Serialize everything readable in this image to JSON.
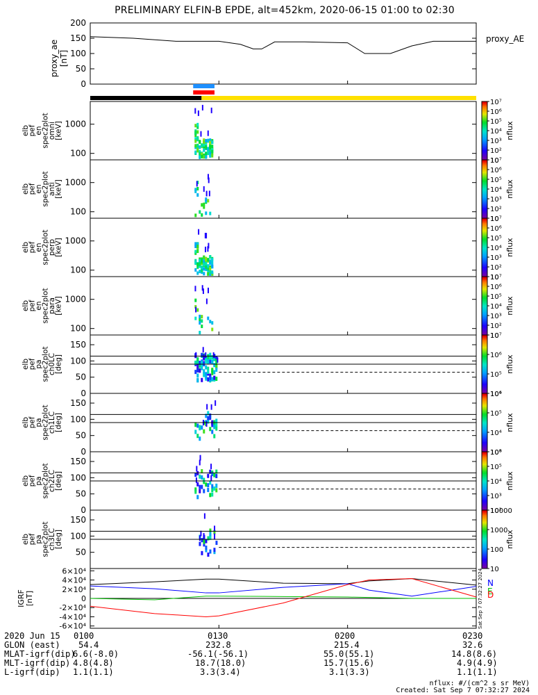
{
  "title": "PRELIMINARY ELFIN-B EPDE, alt=452km, 2020-06-15 01:00 to 02:30",
  "time_axis": {
    "start": "01:00",
    "end": "02:30",
    "ticks": [
      "0100",
      "0130",
      "0200",
      "0230"
    ]
  },
  "colors": {
    "red": "#ff0000",
    "blue": "#0000ff",
    "green": "#00c000",
    "black": "#000000",
    "yellow": "#ffe000",
    "sun_bar_blue": "#1e90ff"
  },
  "footer": {
    "date_label": "2020 Jun 15",
    "rows": [
      {
        "label": "GLON (east)",
        "values": [
          "54.4",
          "232.8",
          "215.4",
          "32.6"
        ]
      },
      {
        "label": "MLAT-igrf(dip)",
        "values": [
          "6.6(-8.0)",
          "-56.1(-56.1)",
          "55.0(55.1)",
          "14.8(8.6)"
        ]
      },
      {
        "label": "MLT-igrf(dip)",
        "values": [
          "4.8(4.8)",
          "18.7(18.0)",
          "15.7(15.6)",
          "4.9(4.9)"
        ]
      },
      {
        "label": "L-igrf(dip)",
        "values": [
          "1.1(1.1)",
          "3.3(3.4)",
          "3.1(3.3)",
          "1.1(1.1)"
        ]
      }
    ],
    "units_note": "nflux: #/(cm^2 s sr MeV)",
    "created": "Created: Sat Sep  7 07:32:27 2024",
    "stamp": "Sat Sep  7 07:32:27 2024"
  },
  "chart_data": [
    {
      "type": "line",
      "ylabel": [
        "proxy_ae",
        "[nT]"
      ],
      "legend": [
        "proxy_AE"
      ],
      "ylim": [
        0,
        200
      ],
      "yticks": [
        0,
        50,
        100,
        150,
        200
      ],
      "x": [
        "01:00",
        "01:10",
        "01:20",
        "01:30",
        "01:35",
        "01:38",
        "01:40",
        "01:43",
        "01:50",
        "02:00",
        "02:04",
        "02:10",
        "02:15",
        "02:20",
        "02:30"
      ],
      "series": [
        {
          "name": "proxy_AE",
          "values": [
            155,
            150,
            140,
            140,
            130,
            115,
            115,
            138,
            138,
            135,
            100,
            100,
            125,
            140,
            140
          ]
        }
      ]
    },
    {
      "type": "heatmap",
      "ylabel": [
        "elb",
        "pef",
        "en",
        "spec2plot",
        "omni",
        "[keV]"
      ],
      "yscale": "log",
      "ylim": [
        60,
        6000
      ],
      "yticks": [
        100,
        1000
      ],
      "colorbar": {
        "label": "nflux",
        "scale": "log",
        "range": [
          10,
          10000000
        ],
        "ticks": [
          "10",
          "10²",
          "10³",
          "10⁴",
          "10⁵",
          "10⁶",
          "10⁷"
        ]
      },
      "active_interval": [
        "01:24",
        "01:28"
      ]
    },
    {
      "type": "heatmap",
      "ylabel": [
        "elb",
        "pef",
        "en",
        "spec2plot",
        "anti",
        "[keV]"
      ],
      "yscale": "log",
      "ylim": [
        60,
        6000
      ],
      "yticks": [
        100,
        1000
      ],
      "colorbar": {
        "label": "nflux",
        "scale": "log",
        "range": [
          10,
          10000000
        ],
        "ticks": [
          "10",
          "10²",
          "10³",
          "10⁴",
          "10⁵",
          "10⁶",
          "10⁷"
        ]
      },
      "active_interval": [
        "01:24",
        "01:28"
      ]
    },
    {
      "type": "heatmap",
      "ylabel": [
        "elb",
        "pef",
        "en",
        "spec2plot",
        "perp",
        "[keV]"
      ],
      "yscale": "log",
      "ylim": [
        60,
        6000
      ],
      "yticks": [
        100,
        1000
      ],
      "colorbar": {
        "label": "nflux",
        "scale": "log",
        "range": [
          10,
          10000000
        ],
        "ticks": [
          "10",
          "10²",
          "10³",
          "10⁴",
          "10⁵",
          "10⁶",
          "10⁷"
        ]
      },
      "active_interval": [
        "01:24",
        "01:28"
      ]
    },
    {
      "type": "heatmap",
      "ylabel": [
        "elb",
        "pef",
        "en",
        "spec2plot",
        "para",
        "[keV]"
      ],
      "yscale": "log",
      "ylim": [
        60,
        6000
      ],
      "yticks": [
        100,
        1000
      ],
      "colorbar": {
        "label": "nflux",
        "scale": "log",
        "range": [
          10,
          10000000
        ],
        "ticks": [
          "10",
          "10²",
          "10³",
          "10⁴",
          "10⁵",
          "10⁶",
          "10⁷"
        ]
      },
      "active_interval": [
        "01:24",
        "01:28"
      ]
    },
    {
      "type": "heatmap",
      "ylabel": [
        "elb",
        "pef",
        "pa",
        "spec2plot",
        "ch0LC",
        "[deg]"
      ],
      "ylim": [
        0,
        180
      ],
      "yticks": [
        0,
        50,
        100,
        150
      ],
      "colorbar": {
        "label": "nflux",
        "scale": "log",
        "range": [
          1000,
          10000000
        ],
        "ticks": [
          "10⁴",
          "10⁵",
          "10⁶",
          "10⁷"
        ]
      },
      "reference_lines": [
        115,
        90
      ],
      "loss_cone_dashed": 65,
      "active_interval": [
        "01:24",
        "01:29"
      ]
    },
    {
      "type": "heatmap",
      "ylabel": [
        "elb",
        "pef",
        "pa",
        "spec2plot",
        "ch1LC",
        "[deg]"
      ],
      "ylim": [
        0,
        180
      ],
      "yticks": [
        0,
        50,
        100,
        150
      ],
      "colorbar": {
        "label": "nflux",
        "scale": "log",
        "range": [
          1000,
          1000000
        ],
        "ticks": [
          "10³",
          "10⁴",
          "10⁵",
          "10⁶"
        ]
      },
      "reference_lines": [
        115,
        90
      ],
      "loss_cone_dashed": 65,
      "active_interval": [
        "01:24",
        "01:29"
      ]
    },
    {
      "type": "heatmap",
      "ylabel": [
        "elb",
        "pef",
        "pa",
        "spec2plot",
        "ch2LC",
        "[deg]"
      ],
      "ylim": [
        0,
        180
      ],
      "yticks": [
        0,
        50,
        100,
        150
      ],
      "colorbar": {
        "label": "nflux",
        "scale": "log",
        "range": [
          100,
          1000000
        ],
        "ticks": [
          "10²",
          "10³",
          "10⁴",
          "10⁵",
          "10⁶"
        ]
      },
      "reference_lines": [
        115,
        90
      ],
      "loss_cone_dashed": 65,
      "active_interval": [
        "01:24",
        "01:29"
      ]
    },
    {
      "type": "heatmap",
      "ylabel": [
        "elb",
        "pef",
        "pa",
        "spec2plot",
        "ch3LC",
        "[deg]"
      ],
      "ylim": [
        0,
        180
      ],
      "yticks": [
        50,
        100,
        150
      ],
      "colorbar": {
        "label": "nflux",
        "scale": "log",
        "range": [
          10,
          10000
        ],
        "ticks": [
          "10",
          "100",
          "1000",
          "10000"
        ]
      },
      "reference_lines": [
        115,
        90
      ],
      "loss_cone_dashed": 65,
      "active_interval": [
        "01:25",
        "01:29"
      ]
    },
    {
      "type": "line",
      "ylabel": [
        "IGRF",
        "[nT]"
      ],
      "legend": [
        "N",
        "E",
        "D"
      ],
      "ylim": [
        -65000,
        65000
      ],
      "yticks": [
        "-6×10⁴",
        "-4×10⁴",
        "-2×10⁴",
        "0",
        "2×10⁴",
        "4×10⁴",
        "6×10⁴"
      ],
      "x": [
        "01:00",
        "01:15",
        "01:27",
        "01:30",
        "01:45",
        "02:00",
        "02:05",
        "02:15",
        "02:30"
      ],
      "series": [
        {
          "name": "black",
          "values": [
            30000,
            36000,
            42000,
            42000,
            33000,
            32000,
            38000,
            43000,
            29000
          ]
        },
        {
          "name": "blue",
          "values": [
            27000,
            21000,
            12000,
            12000,
            24000,
            32000,
            18000,
            5000,
            26000
          ]
        },
        {
          "name": "green",
          "values": [
            0,
            -3000,
            5000,
            5000,
            4000,
            3000,
            2000,
            0,
            0
          ]
        },
        {
          "name": "red",
          "values": [
            -17000,
            -33000,
            -40000,
            -38000,
            -10000,
            30000,
            40000,
            43000,
            3000
          ]
        }
      ]
    }
  ]
}
